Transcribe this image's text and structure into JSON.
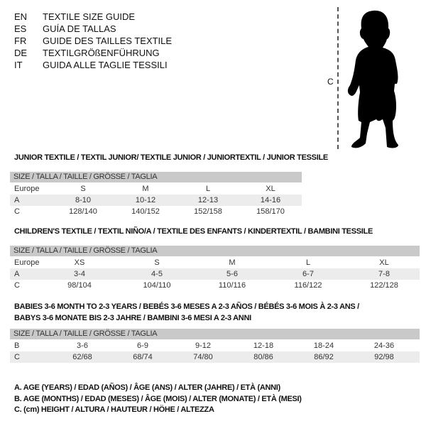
{
  "guide_titles": [
    {
      "code": "EN",
      "title": "TEXTILE SIZE GUIDE"
    },
    {
      "code": "ES",
      "title": "GUÍA DE TALLAS"
    },
    {
      "code": "FR",
      "title": "GUIDE DES TAILLES TEXTILE"
    },
    {
      "code": "DE",
      "title": "TEXTILGRÖßENFÜHRUNG"
    },
    {
      "code": "IT",
      "title": "GUIDA ALLE TAGLIE TESSILI"
    }
  ],
  "figure": {
    "measure_label": "C",
    "icon": "child-silhouette-icon"
  },
  "junior": {
    "heading": "JUNIOR TEXTILE / TEXTIL JUNIOR/ TEXTILE JUNIOR / JUNIORTEXTIL / JUNIOR TESSILE",
    "size_header": "SIZE / TALLA / TAILLE / GRÖSSE / TAGLIA",
    "rows": [
      {
        "label": "Europe",
        "values": [
          "S",
          "M",
          "L",
          "XL"
        ]
      },
      {
        "label": "A",
        "values": [
          "8-10",
          "10-12",
          "12-13",
          "14-16"
        ]
      },
      {
        "label": "C",
        "values": [
          "128/140",
          "140/152",
          "152/158",
          "158/170"
        ]
      }
    ]
  },
  "children": {
    "heading": "CHILDREN'S TEXTILE / TEXTIL NIÑO/A / TEXTILE DES ENFANTS / KINDERTEXTIL / BAMBINI TESSILE",
    "size_header": "SIZE / TALLA / TAILLE / GRÖSSE / TAGLIA",
    "rows": [
      {
        "label": "Europe",
        "values": [
          "XS",
          "S",
          "M",
          "L",
          "XL"
        ]
      },
      {
        "label": "A",
        "values": [
          "3-4",
          "4-5",
          "5-6",
          "6-7",
          "7-8"
        ]
      },
      {
        "label": "C",
        "values": [
          "98/104",
          "104/110",
          "110/116",
          "116/122",
          "122/128"
        ]
      }
    ]
  },
  "babies": {
    "heading_line1": "BABIES 3-6 MONTH TO 2-3 YEARS / BEBÉS 3-6 MESES A 2-3 AÑOS / BÉBÉS 3-6 MOIS À 2-3 ANS /",
    "heading_line2": "BABYS 3-6 MONATE BIS 2-3 JAHRE / BAMBINI 3-6 MESI A 2-3 ANNI",
    "size_header": "SIZE / TALLA / TAILLE / GRÖSSE / TAGLIA",
    "rows": [
      {
        "label": "B",
        "values": [
          "3-6",
          "6-9",
          "9-12",
          "12-18",
          "18-24",
          "24-36"
        ]
      },
      {
        "label": "C",
        "values": [
          "62/68",
          "68/74",
          "74/80",
          "80/86",
          "86/92",
          "92/98"
        ]
      }
    ]
  },
  "legend": [
    "A. AGE (YEARS) / EDAD (AÑOS) / ÂGE (ANS) / ALTER (JAHRE) / ETÀ (ANNI)",
    "B. AGE (MONTHS) / EDAD (MESES) / ÂGE (MOIS) / ALTER (MONATE) / ETÀ (MESI)",
    "C. (cm) HEIGHT / ALTURA / HAUTEUR / HÖHE / ALTEZZA"
  ]
}
